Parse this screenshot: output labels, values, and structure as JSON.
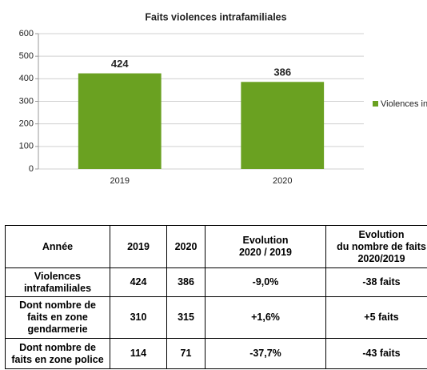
{
  "chart_data": {
    "type": "bar",
    "title": "Faits violences intrafamiliales",
    "categories": [
      "2019",
      "2020"
    ],
    "series": [
      {
        "name": "Violences intrafamiliales",
        "color": "#6aa121",
        "values": [
          424,
          386
        ]
      }
    ],
    "ylim": [
      0,
      600
    ],
    "yticks": [
      0,
      100,
      200,
      300,
      400,
      500,
      600
    ],
    "grid": true,
    "legend": "right"
  },
  "table": {
    "header": [
      "Année",
      "2019",
      "2020",
      "Evolution\n2020 / 2019",
      "Evolution\ndu nombre de faits\n2020/2019"
    ],
    "rows": [
      [
        "Violences\nintrafamiliales",
        "424",
        "386",
        "-9,0%",
        "-38 faits"
      ],
      [
        "Dont nombre de\nfaits en zone\ngendarmerie",
        "310",
        "315",
        "+1,6%",
        "+5 faits"
      ],
      [
        "Dont nombre de\nfaits en zone police",
        "114",
        "71",
        "-37,7%",
        "-43 faits"
      ]
    ]
  }
}
